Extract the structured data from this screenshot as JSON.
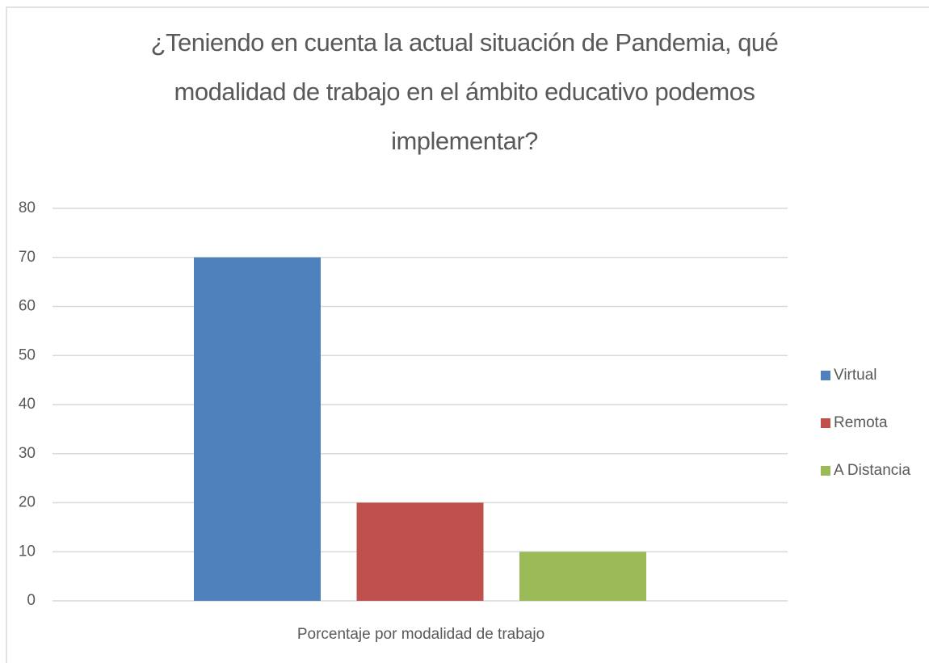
{
  "chart_data": {
    "type": "bar",
    "title": "¿Teniendo en cuenta la actual situación de Pandemia, qué modalidad de trabajo en el ámbito educativo podemos implementar?",
    "categories": [
      "Porcentaje por modalidad de trabajo"
    ],
    "series": [
      {
        "name": "Virtual",
        "color": "#4f81bd",
        "values": [
          70
        ]
      },
      {
        "name": "Remota",
        "color": "#c0504d",
        "values": [
          20
        ]
      },
      {
        "name": "A Distancia",
        "color": "#9bbb59",
        "values": [
          10
        ]
      }
    ],
    "ylim": [
      0,
      80
    ],
    "yticks": [
      0,
      10,
      20,
      30,
      40,
      50,
      60,
      70,
      80
    ],
    "grid": true,
    "legend": "right"
  }
}
